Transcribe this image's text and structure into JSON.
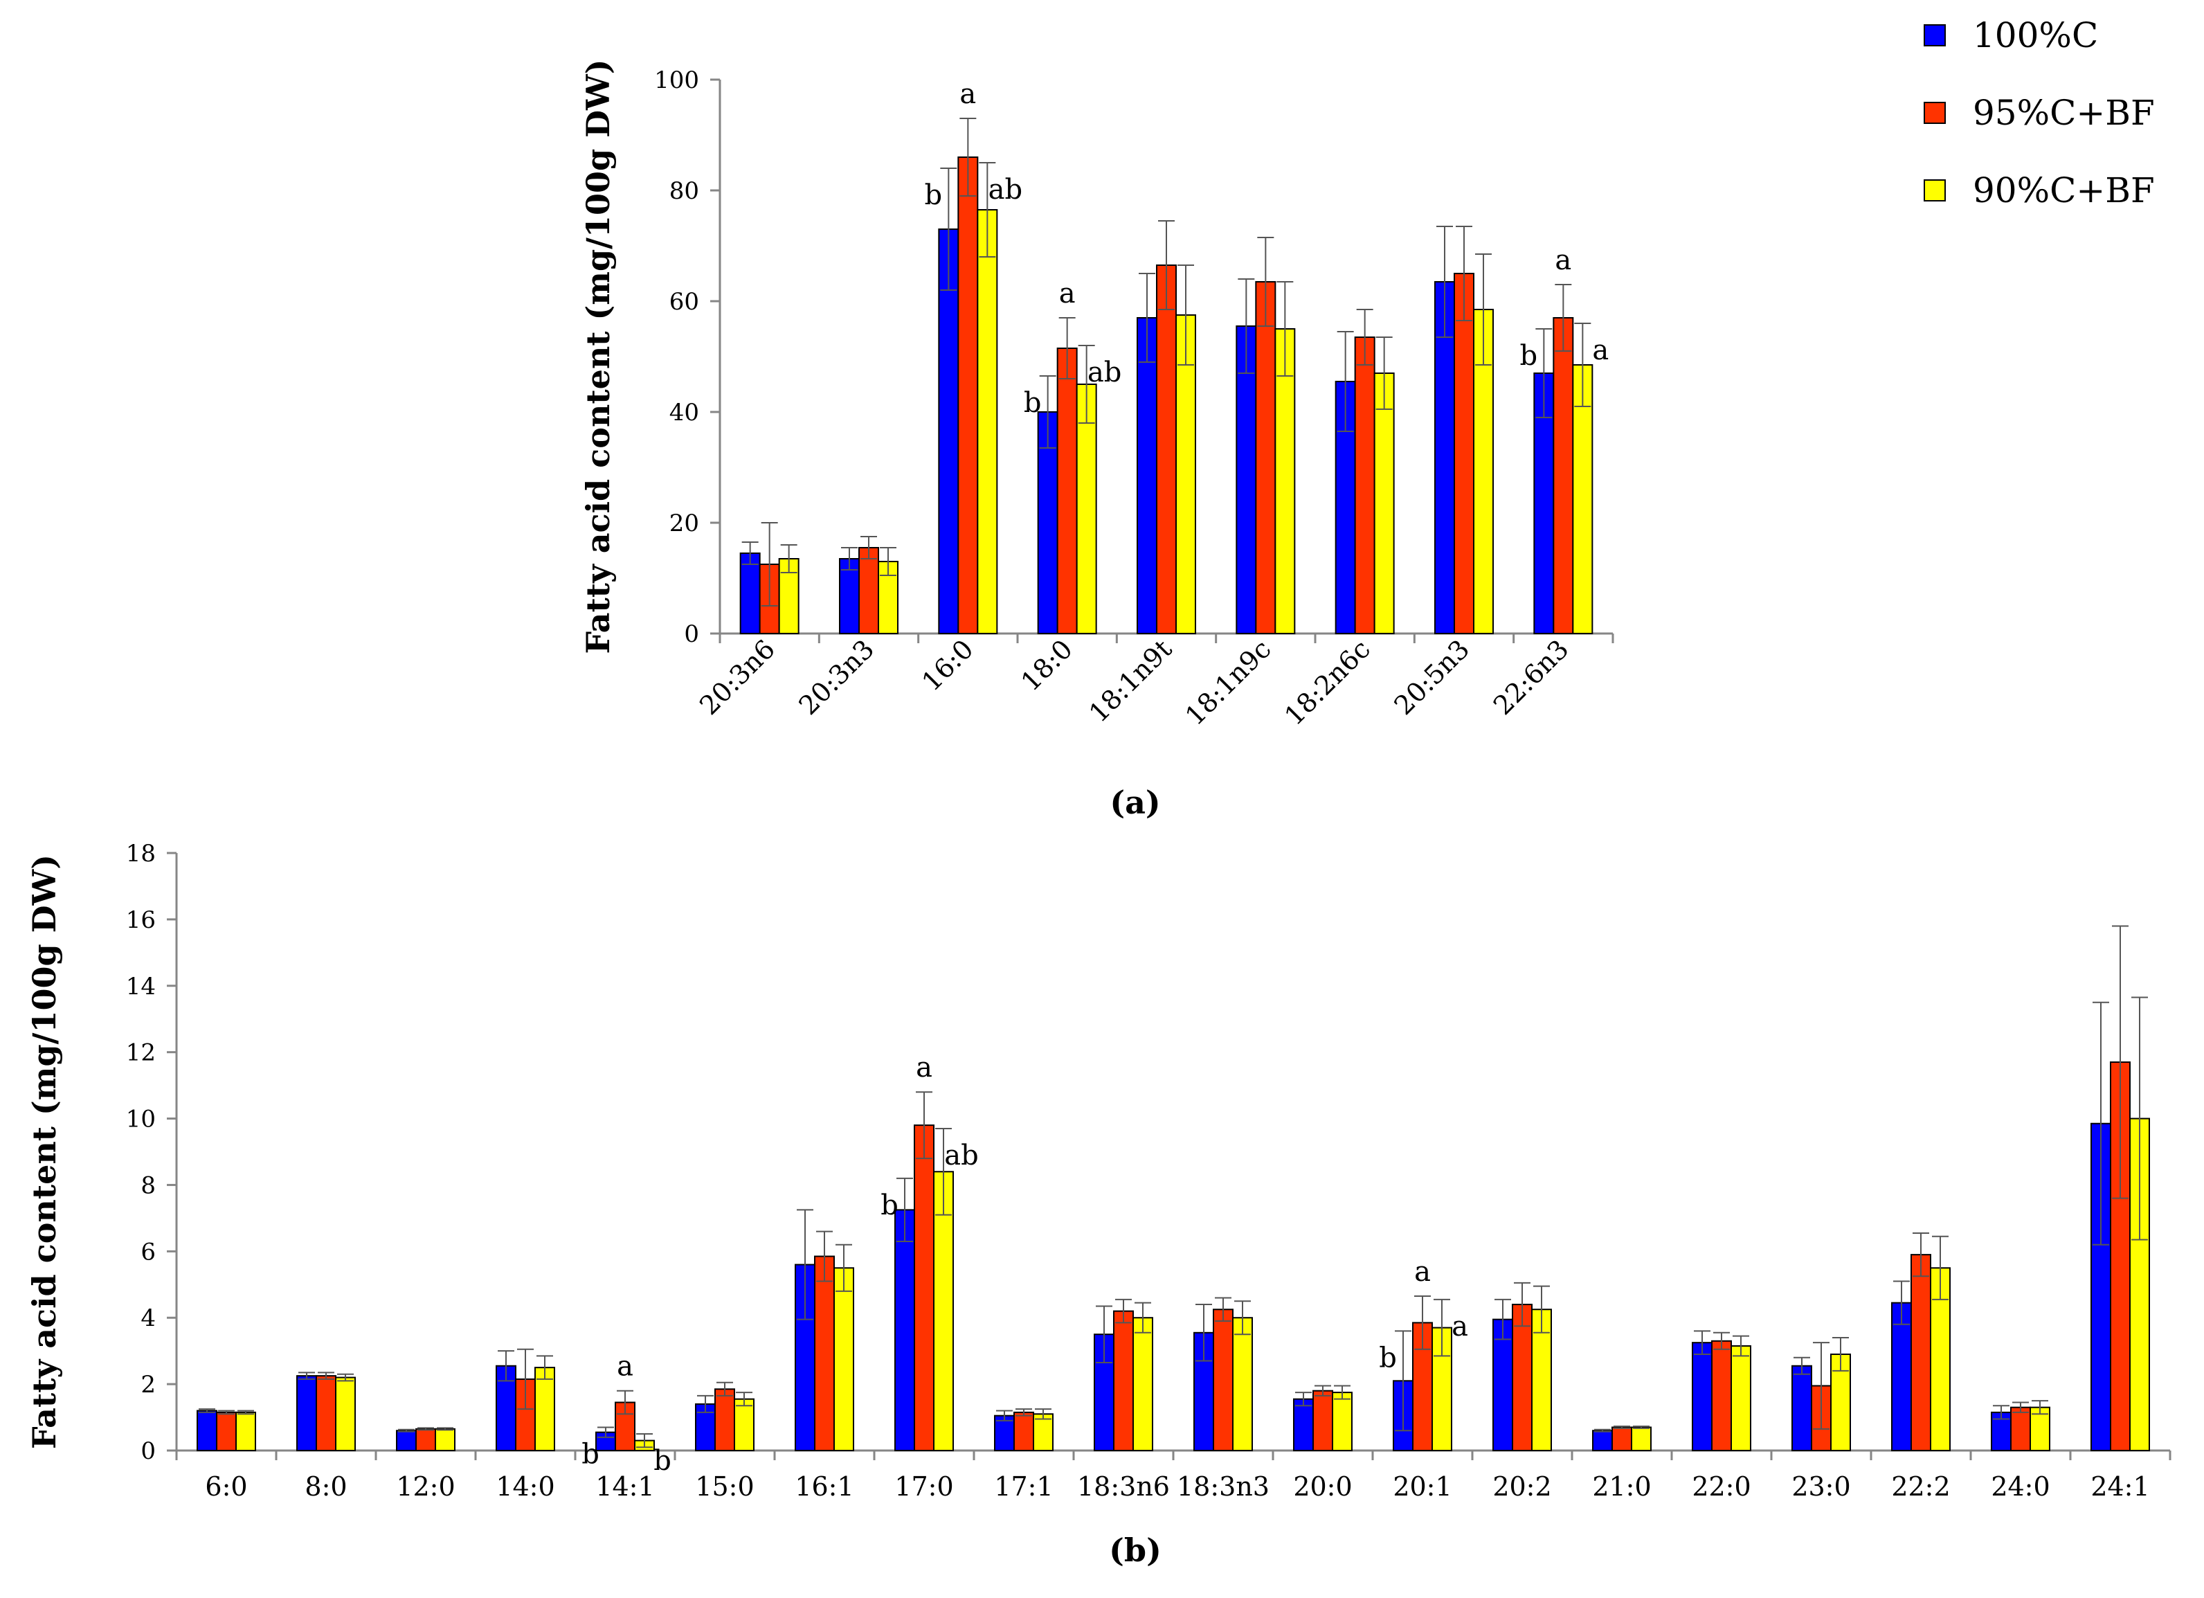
{
  "legend": [
    {
      "name": "100%C",
      "color": "#0000ff"
    },
    {
      "name": "95%C+BF",
      "color": "#ff3300"
    },
    {
      "name": "90%C+BF",
      "color": "#ffff00"
    }
  ],
  "chart_data": [
    {
      "type": "bar",
      "panel_label": "(a)",
      "ylabel": "Fatty acid content (mg/100g DW)",
      "xlabel": "",
      "ylim": [
        0,
        100
      ],
      "yticks": [
        "0",
        "20",
        "40",
        "60",
        "80",
        "100"
      ],
      "grid": false,
      "categories": [
        "20:3n6",
        "20:3n3",
        "16:0",
        "18:0",
        "18:1n9t",
        "18:1n9c",
        "18:2n6c",
        "20:5n3",
        "22:6n3"
      ],
      "series": [
        {
          "name": "100%C",
          "color": "#0000ff",
          "values": [
            14.5,
            13.5,
            73,
            40,
            57,
            55.5,
            45.5,
            63.5,
            47
          ],
          "errors": [
            2,
            2,
            11,
            6.5,
            8,
            8.5,
            9,
            10,
            8
          ]
        },
        {
          "name": "95%C+BF",
          "color": "#ff3300",
          "values": [
            12.5,
            15.5,
            86,
            51.5,
            66.5,
            63.5,
            53.5,
            65,
            57
          ],
          "errors": [
            7.5,
            2,
            7,
            5.5,
            8,
            8,
            5,
            8.5,
            6
          ]
        },
        {
          "name": "90%C+BF",
          "color": "#ffff00",
          "values": [
            13.5,
            13,
            76.5,
            45,
            57.5,
            55,
            47,
            58.5,
            48.5
          ],
          "errors": [
            2.5,
            2.5,
            8.5,
            7,
            9,
            8.5,
            6.5,
            10,
            7.5
          ]
        }
      ],
      "annotations": [
        {
          "category": "16:0",
          "series": "100%C",
          "text": "b"
        },
        {
          "category": "16:0",
          "series": "95%C+BF",
          "text": "a"
        },
        {
          "category": "16:0",
          "series": "90%C+BF",
          "text": "ab"
        },
        {
          "category": "18:0",
          "series": "100%C",
          "text": "b"
        },
        {
          "category": "18:0",
          "series": "95%C+BF",
          "text": "a"
        },
        {
          "category": "18:0",
          "series": "90%C+BF",
          "text": "ab"
        },
        {
          "category": "22:6n3",
          "series": "100%C",
          "text": "b"
        },
        {
          "category": "22:6n3",
          "series": "95%C+BF",
          "text": "a"
        },
        {
          "category": "22:6n3",
          "series": "90%C+BF",
          "text": "a"
        }
      ]
    },
    {
      "type": "bar",
      "panel_label": "(b)",
      "ylabel": "Fatty acid content (mg/100g DW)",
      "xlabel": "",
      "ylim": [
        0,
        18
      ],
      "yticks": [
        "0",
        "2",
        "4",
        "6",
        "8",
        "10",
        "12",
        "14",
        "16",
        "18"
      ],
      "grid": false,
      "categories": [
        "6:0",
        "8:0",
        "12:0",
        "14:0",
        "14:1",
        "15:0",
        "16:1",
        "17:0",
        "17:1",
        "18:3n6",
        "18:3n3",
        "20:0",
        "20:1",
        "20:2",
        "21:0",
        "22:0",
        "23:0",
        "22:2",
        "24:0",
        "24:1"
      ],
      "series": [
        {
          "name": "100%C",
          "color": "#0000ff",
          "values": [
            1.2,
            2.25,
            0.6,
            2.55,
            0.55,
            1.4,
            5.6,
            7.25,
            1.05,
            3.5,
            3.55,
            1.55,
            2.1,
            3.95,
            0.6,
            3.25,
            2.55,
            4.45,
            1.15,
            9.85
          ],
          "errors": [
            0.05,
            0.1,
            0.03,
            0.45,
            0.15,
            0.25,
            1.65,
            0.95,
            0.15,
            0.85,
            0.85,
            0.2,
            1.5,
            0.6,
            0.03,
            0.35,
            0.25,
            0.65,
            0.2,
            3.65
          ]
        },
        {
          "name": "95%C+BF",
          "color": "#ff3300",
          "values": [
            1.15,
            2.25,
            0.65,
            2.15,
            1.45,
            1.85,
            5.85,
            9.8,
            1.15,
            4.2,
            4.25,
            1.8,
            3.85,
            4.4,
            0.7,
            3.3,
            1.95,
            5.9,
            1.3,
            11.7
          ],
          "errors": [
            0.05,
            0.1,
            0.03,
            0.9,
            0.35,
            0.2,
            0.75,
            1.0,
            0.1,
            0.35,
            0.35,
            0.15,
            0.8,
            0.65,
            0.03,
            0.25,
            1.3,
            0.65,
            0.15,
            4.1
          ]
        },
        {
          "name": "90%C+BF",
          "color": "#ffff00",
          "values": [
            1.15,
            2.2,
            0.65,
            2.5,
            0.3,
            1.55,
            5.5,
            8.4,
            1.1,
            4.0,
            4.0,
            1.75,
            3.7,
            4.25,
            0.7,
            3.15,
            2.9,
            5.5,
            1.3,
            10.0
          ],
          "errors": [
            0.05,
            0.1,
            0.03,
            0.35,
            0.2,
            0.2,
            0.7,
            1.3,
            0.15,
            0.45,
            0.5,
            0.2,
            0.85,
            0.7,
            0.03,
            0.3,
            0.5,
            0.95,
            0.2,
            3.65
          ]
        }
      ],
      "annotations": [
        {
          "category": "14:1",
          "series": "100%C",
          "text": "b"
        },
        {
          "category": "14:1",
          "series": "95%C+BF",
          "text": "a"
        },
        {
          "category": "14:1",
          "series": "90%C+BF",
          "text": "b"
        },
        {
          "category": "17:0",
          "series": "100%C",
          "text": "b"
        },
        {
          "category": "17:0",
          "series": "95%C+BF",
          "text": "a"
        },
        {
          "category": "17:0",
          "series": "90%C+BF",
          "text": "ab"
        },
        {
          "category": "20:1",
          "series": "100%C",
          "text": "b"
        },
        {
          "category": "20:1",
          "series": "95%C+BF",
          "text": "a"
        },
        {
          "category": "20:1",
          "series": "90%C+BF",
          "text": "a"
        }
      ]
    }
  ]
}
